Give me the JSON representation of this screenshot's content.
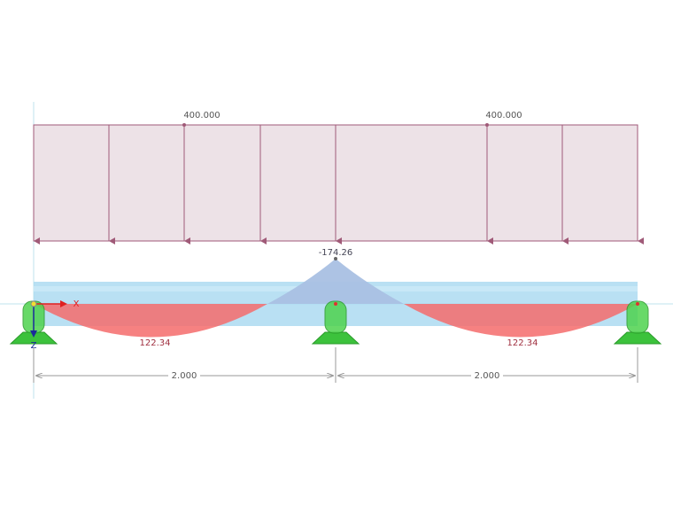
{
  "loads": [
    "400.000",
    "400.000"
  ],
  "moments": {
    "support": "-174.26",
    "spans": [
      "122.34",
      "122.34"
    ]
  },
  "dimensions": [
    "2.000",
    "2.000"
  ],
  "axes": {
    "x": "X",
    "z": "Z"
  }
}
